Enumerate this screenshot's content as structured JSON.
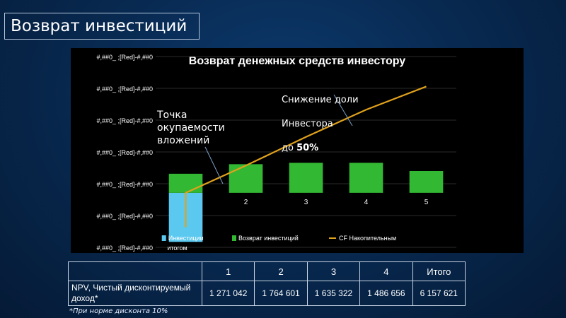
{
  "slide": {
    "title": "Возврат инвестиций"
  },
  "chart_data": {
    "type": "bar",
    "title": "Возврат денежных средств инвестору",
    "y_tick_labels": [
      "#,##0_ ;[Red]-#,##0",
      "#,##0_ ;[Red]-#,##0",
      "#,##0_ ;[Red]-#,##0",
      "#,##0_ ;[Red]-#,##0",
      "#,##0_ ;[Red]-#,##0",
      "#,##0_ ;[Red]-#,##0",
      "#,##0_ ;[Red]-#,##0"
    ],
    "categories": [
      "итогом",
      "2",
      "3",
      "4",
      "5"
    ],
    "series": [
      {
        "name": "Инвестиции",
        "color": "#5bc8f0",
        "values": [
          -1.8,
          null,
          null,
          null,
          null
        ]
      },
      {
        "name": "Возврат инвестиций",
        "color": "#33b833",
        "values": [
          0.7,
          1.05,
          1.1,
          1.1,
          0.8
        ]
      },
      {
        "name": "CF Накопительным",
        "color": "#e0a21c",
        "values": [
          0.0,
          1.0,
          2.05,
          3.05,
          3.9
        ]
      }
    ],
    "ylim": [
      -2,
      5
    ],
    "legend_position": "bottom"
  },
  "annotations": {
    "payback": "Точка\nокупаемости\nвложений",
    "reduction_line1": "Снижение доли",
    "reduction_line2": "Инвестора",
    "reduction_prefix": "до ",
    "reduction_value": "50%"
  },
  "table": {
    "headers": [
      "",
      "1",
      "2",
      "3",
      "4",
      "Итого"
    ],
    "row_label": "NPV, Чистый дисконтируемый доход*",
    "values": [
      "1 271 042",
      "1 764 601",
      "1 635 322",
      "1 486 656",
      "6 157 621"
    ]
  },
  "footnote": "*При норме дисконта 10%"
}
